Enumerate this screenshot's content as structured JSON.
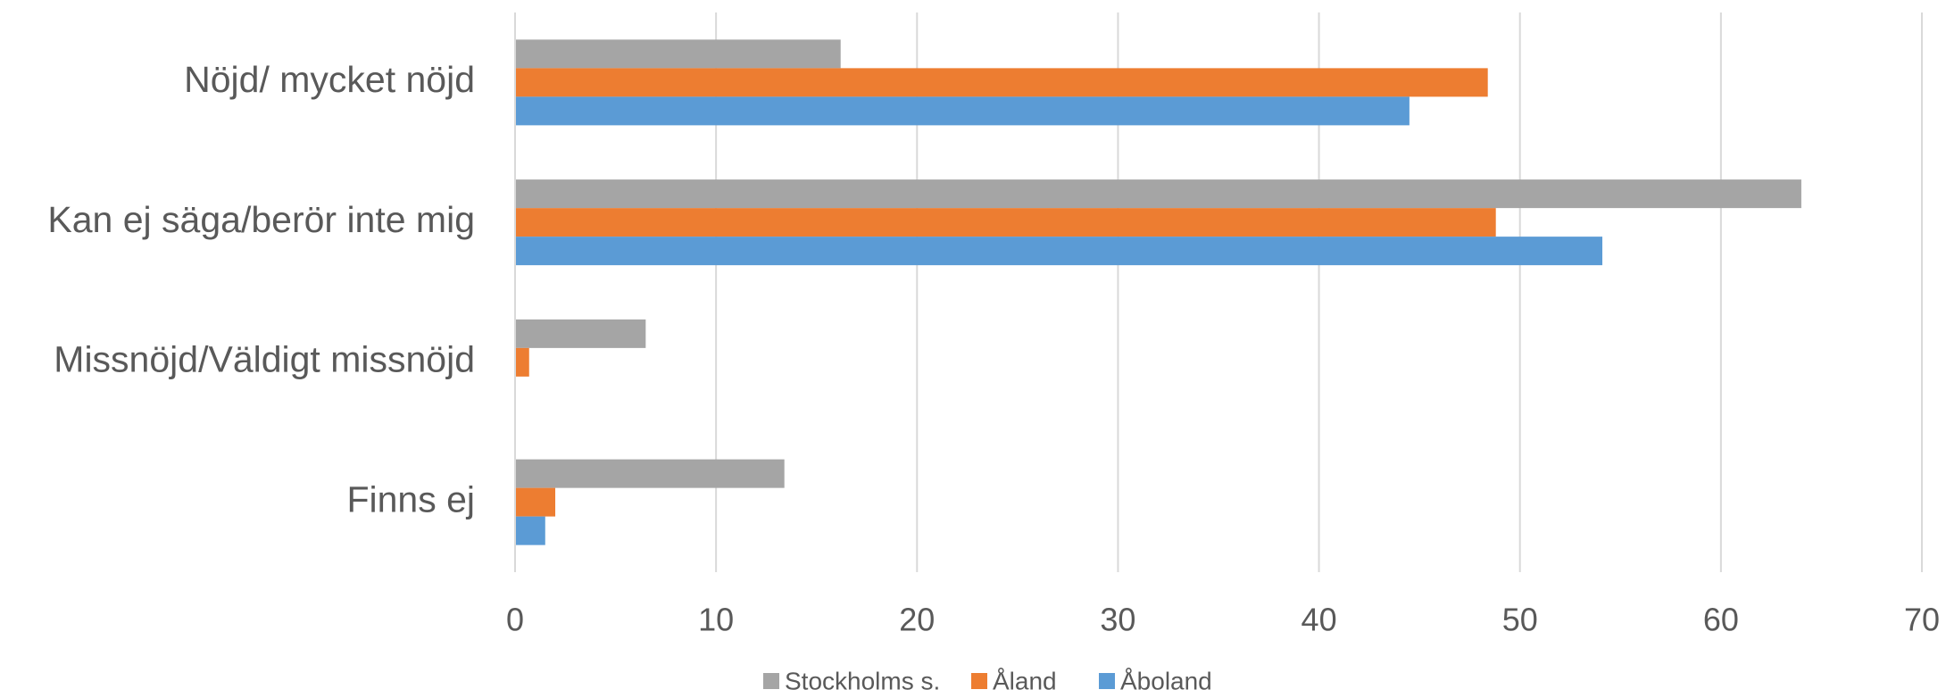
{
  "chart_data": {
    "type": "hbar",
    "categories": [
      "Nöjd/ mycket nöjd",
      "Kan ej säga/berör inte mig",
      "Missnöjd/Väldigt missnöjd",
      "Finns ej"
    ],
    "series": [
      {
        "name": "Stockholms s.",
        "color": "#a5a5a5",
        "values": [
          16.2,
          64.0,
          6.5,
          13.4
        ]
      },
      {
        "name": "Åland",
        "color": "#ed7d31",
        "values": [
          48.4,
          48.8,
          0.7,
          2.0
        ]
      },
      {
        "name": "Åboland",
        "color": "#5b9bd5",
        "values": [
          44.5,
          54.1,
          0,
          1.5
        ]
      }
    ],
    "xlim": [
      0,
      70
    ],
    "xticks": [
      0,
      10,
      20,
      30,
      40,
      50,
      60,
      70
    ],
    "grid": true,
    "legend": "bottom"
  }
}
